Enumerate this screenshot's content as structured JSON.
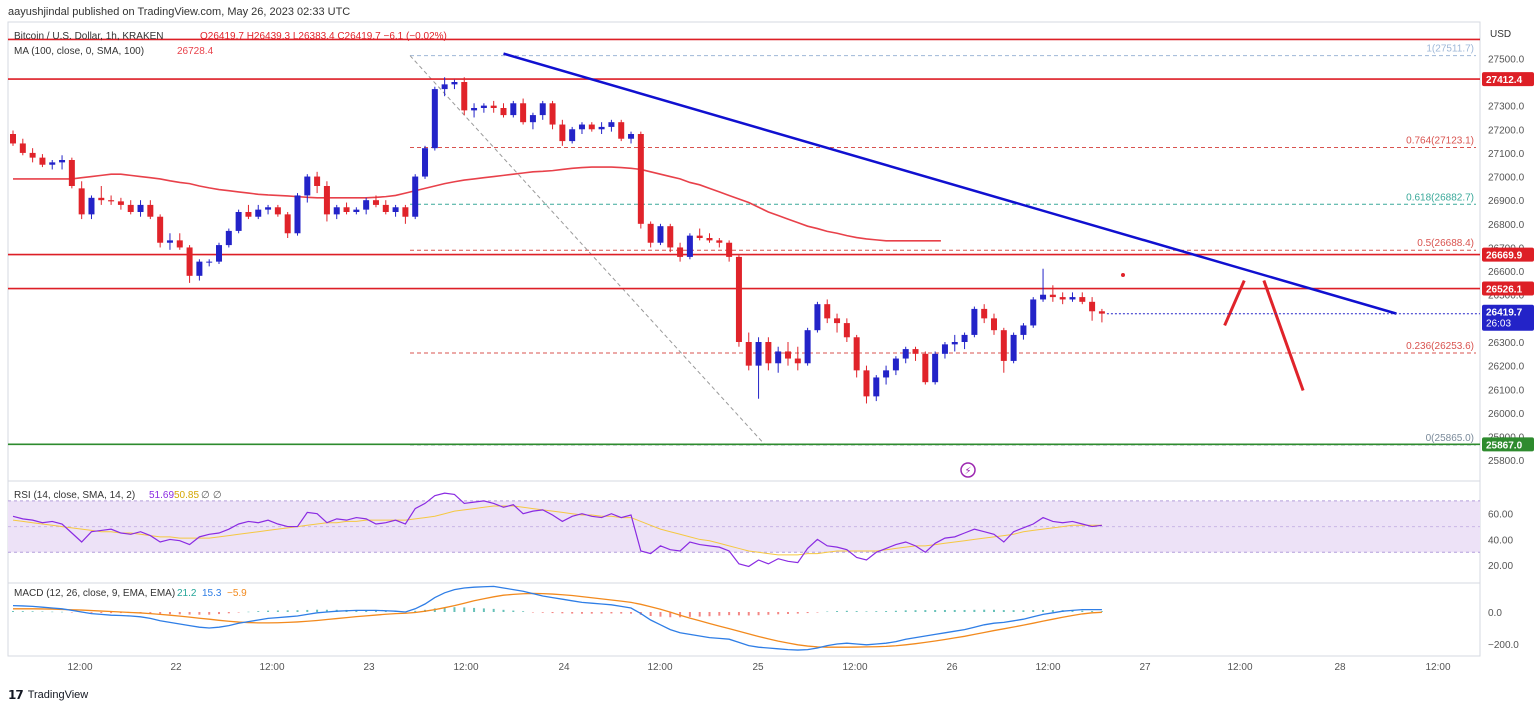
{
  "header": {
    "published": "aayushjindal published on TradingView.com, May 26, 2023 02:33 UTC"
  },
  "footer": {
    "brand": "TradingView",
    "logo_glyph": "𝟭𝟳"
  },
  "colors": {
    "up": "#2323c8",
    "down": "#e0232a",
    "ma": "#e8414a",
    "trend": "#1010d0",
    "resistance": "#dd1f26",
    "support": "#2e8b2e",
    "rsi": "#8a2be2",
    "rsi_ma": "#f5c842",
    "macd": "#2f7ee6",
    "signal": "#f28a1e"
  },
  "chart_data": {
    "type": "candlestick",
    "symbol_line": {
      "name": "Bitcoin / U.S. Dollar, 1h, KRAKEN",
      "ohlc": "O26419.7  H26439.3  L26383.4  C26419.7  −6.1 (−0.02%)"
    },
    "ma_legend": {
      "label": "MA (100, close, 0, SMA, 100)",
      "value": "26728.4"
    },
    "currency": "USD",
    "price_axis_ticks": [
      "27500.0",
      "27400.0",
      "27300.0",
      "27200.0",
      "27100.0",
      "27000.0",
      "26900.0",
      "26800.0",
      "26700.0",
      "26600.0",
      "26500.0",
      "26400.0",
      "26300.0",
      "26200.0",
      "26100.0",
      "26000.0",
      "25900.0",
      "25800.0"
    ],
    "time_axis_labels": [
      "12:00",
      "22",
      "12:00",
      "23",
      "12:00",
      "24",
      "12:00",
      "25",
      "12:00",
      "26",
      "12:00",
      "27",
      "12:00",
      "28",
      "12:00"
    ],
    "price_badges": [
      {
        "price": 27412.4,
        "label": "27412.4",
        "color": "#dd1f26"
      },
      {
        "price": 26669.9,
        "label": "26669.9",
        "color": "#dd1f26"
      },
      {
        "price": 26526.1,
        "label": "26526.1",
        "color": "#dd1f26"
      },
      {
        "price": 26419.7,
        "label": "26419.7",
        "sub": "26:03",
        "color": "#2323c8"
      },
      {
        "price": 25867.0,
        "label": "25867.0",
        "color": "#2e8b2e"
      }
    ],
    "horizontal_levels": [
      {
        "price": 27580.0,
        "color": "#dd1f26"
      },
      {
        "price": 27412.4,
        "color": "#dd1f26"
      },
      {
        "price": 26669.9,
        "color": "#dd1f26"
      },
      {
        "price": 26526.1,
        "color": "#dd1f26"
      },
      {
        "price": 25867.0,
        "color": "#2e8b2e"
      }
    ],
    "fibonacci": [
      {
        "price": 27511.7,
        "label": "1(27511.7)",
        "color": "#9fb8d8"
      },
      {
        "price": 27123.1,
        "label": "0.764(27123.1)",
        "color": "#d9534f"
      },
      {
        "price": 26882.7,
        "label": "0.618(26882.7)",
        "color": "#3aa99a"
      },
      {
        "price": 26688.4,
        "label": "0.5(26688.4)",
        "color": "#d9534f"
      },
      {
        "price": 26253.6,
        "label": "0.236(26253.6)",
        "color": "#d9534f"
      },
      {
        "price": 25865.0,
        "label": "0(25865.0)",
        "color": "#7a8a9a"
      }
    ],
    "trendline": {
      "from": {
        "bar": 50,
        "price": 27520
      },
      "to": {
        "bar": 140,
        "price": 26420
      }
    },
    "projection": [
      {
        "from": {
          "bar": 123,
          "price": 26370
        },
        "to": {
          "bar": 125,
          "price": 26560
        }
      },
      {
        "from": {
          "bar": 127,
          "price": 26560
        },
        "to": {
          "bar": 131,
          "price": 26095
        }
      }
    ],
    "candles": [
      [
        27180,
        27195,
        27130,
        27140
      ],
      [
        27140,
        27160,
        27090,
        27100
      ],
      [
        27100,
        27120,
        27060,
        27080
      ],
      [
        27080,
        27095,
        27040,
        27050
      ],
      [
        27050,
        27070,
        27030,
        27060
      ],
      [
        27060,
        27090,
        27030,
        27070
      ],
      [
        27070,
        27080,
        26950,
        26960
      ],
      [
        26950,
        26980,
        26820,
        26840
      ],
      [
        26840,
        26920,
        26820,
        26910
      ],
      [
        26910,
        26960,
        26880,
        26900
      ],
      [
        26900,
        26920,
        26880,
        26895
      ],
      [
        26895,
        26910,
        26860,
        26880
      ],
      [
        26880,
        26900,
        26840,
        26850
      ],
      [
        26850,
        26900,
        26830,
        26880
      ],
      [
        26880,
        26900,
        26820,
        26830
      ],
      [
        26830,
        26840,
        26700,
        26720
      ],
      [
        26720,
        26760,
        26690,
        26730
      ],
      [
        26730,
        26760,
        26690,
        26700
      ],
      [
        26700,
        26710,
        26550,
        26580
      ],
      [
        26580,
        26650,
        26560,
        26640
      ],
      [
        26640,
        26650,
        26620,
        26640
      ],
      [
        26640,
        26720,
        26630,
        26710
      ],
      [
        26710,
        26780,
        26700,
        26770
      ],
      [
        26770,
        26860,
        26760,
        26850
      ],
      [
        26850,
        26880,
        26820,
        26830
      ],
      [
        26830,
        26880,
        26820,
        26860
      ],
      [
        26860,
        26880,
        26840,
        26870
      ],
      [
        26870,
        26880,
        26830,
        26840
      ],
      [
        26840,
        26850,
        26740,
        26760
      ],
      [
        26760,
        26930,
        26750,
        26920
      ],
      [
        26920,
        27010,
        26890,
        27000
      ],
      [
        27000,
        27020,
        26930,
        26960
      ],
      [
        26960,
        26980,
        26810,
        26840
      ],
      [
        26840,
        26880,
        26820,
        26870
      ],
      [
        26870,
        26890,
        26840,
        26850
      ],
      [
        26850,
        26870,
        26840,
        26860
      ],
      [
        26860,
        26910,
        26840,
        26900
      ],
      [
        26900,
        26920,
        26870,
        26880
      ],
      [
        26880,
        26900,
        26840,
        26850
      ],
      [
        26850,
        26880,
        26830,
        26870
      ],
      [
        26870,
        26880,
        26800,
        26830
      ],
      [
        26830,
        27010,
        26820,
        27000
      ],
      [
        27000,
        27130,
        26990,
        27120
      ],
      [
        27120,
        27380,
        27110,
        27370
      ],
      [
        27370,
        27420,
        27340,
        27390
      ],
      [
        27390,
        27410,
        27370,
        27400
      ],
      [
        27400,
        27420,
        27260,
        27280
      ],
      [
        27280,
        27310,
        27250,
        27290
      ],
      [
        27290,
        27310,
        27270,
        27300
      ],
      [
        27300,
        27320,
        27270,
        27290
      ],
      [
        27290,
        27310,
        27250,
        27260
      ],
      [
        27260,
        27320,
        27250,
        27310
      ],
      [
        27310,
        27330,
        27220,
        27230
      ],
      [
        27230,
        27270,
        27200,
        27260
      ],
      [
        27260,
        27320,
        27240,
        27310
      ],
      [
        27310,
        27320,
        27200,
        27220
      ],
      [
        27220,
        27240,
        27130,
        27150
      ],
      [
        27150,
        27210,
        27140,
        27200
      ],
      [
        27200,
        27230,
        27180,
        27220
      ],
      [
        27220,
        27230,
        27190,
        27200
      ],
      [
        27200,
        27230,
        27180,
        27210
      ],
      [
        27210,
        27240,
        27190,
        27230
      ],
      [
        27230,
        27240,
        27150,
        27160
      ],
      [
        27160,
        27190,
        27140,
        27180
      ],
      [
        27180,
        27190,
        26780,
        26800
      ],
      [
        26800,
        26810,
        26700,
        26720
      ],
      [
        26720,
        26800,
        26710,
        26790
      ],
      [
        26790,
        26800,
        26680,
        26700
      ],
      [
        26700,
        26720,
        26640,
        26660
      ],
      [
        26660,
        26760,
        26650,
        26750
      ],
      [
        26750,
        26780,
        26730,
        26740
      ],
      [
        26740,
        26760,
        26720,
        26730
      ],
      [
        26730,
        26740,
        26700,
        26720
      ],
      [
        26720,
        26730,
        26640,
        26660
      ],
      [
        26660,
        26670,
        26280,
        26300
      ],
      [
        26300,
        26340,
        26180,
        26200
      ],
      [
        26200,
        26320,
        26060,
        26300
      ],
      [
        26300,
        26320,
        26180,
        26210
      ],
      [
        26210,
        26280,
        26170,
        26260
      ],
      [
        26260,
        26300,
        26200,
        26230
      ],
      [
        26230,
        26280,
        26180,
        26210
      ],
      [
        26210,
        26360,
        26200,
        26350
      ],
      [
        26350,
        26470,
        26340,
        26460
      ],
      [
        26460,
        26480,
        26380,
        26400
      ],
      [
        26400,
        26420,
        26340,
        26380
      ],
      [
        26380,
        26400,
        26300,
        26320
      ],
      [
        26320,
        26330,
        26150,
        26180
      ],
      [
        26180,
        26200,
        26040,
        26070
      ],
      [
        26070,
        26160,
        26050,
        26150
      ],
      [
        26150,
        26200,
        26120,
        26180
      ],
      [
        26180,
        26240,
        26160,
        26230
      ],
      [
        26230,
        26280,
        26210,
        26270
      ],
      [
        26270,
        26280,
        26220,
        26250
      ],
      [
        26250,
        26260,
        26120,
        26130
      ],
      [
        26130,
        26260,
        26120,
        26250
      ],
      [
        26250,
        26300,
        26230,
        26290
      ],
      [
        26290,
        26330,
        26260,
        26300
      ],
      [
        26300,
        26340,
        26270,
        26330
      ],
      [
        26330,
        26450,
        26320,
        26440
      ],
      [
        26440,
        26460,
        26380,
        26400
      ],
      [
        26400,
        26420,
        26330,
        26350
      ],
      [
        26350,
        26360,
        26170,
        26220
      ],
      [
        26220,
        26340,
        26210,
        26330
      ],
      [
        26330,
        26380,
        26310,
        26370
      ],
      [
        26370,
        26490,
        26360,
        26480
      ],
      [
        26480,
        26610,
        26470,
        26500
      ],
      [
        26500,
        26540,
        26470,
        26490
      ],
      [
        26490,
        26510,
        26460,
        26480
      ],
      [
        26480,
        26510,
        26470,
        26490
      ],
      [
        26490,
        26510,
        26460,
        26470
      ],
      [
        26470,
        26490,
        26390,
        26430
      ],
      [
        26430,
        26440,
        26383,
        26420
      ]
    ],
    "ma": [
      26990,
      26990,
      26990,
      26990,
      26990,
      26990,
      26990,
      26995,
      27000,
      27005,
      27010,
      27010,
      27005,
      27000,
      26995,
      26990,
      26982,
      26975,
      26970,
      26960,
      26952,
      26945,
      26940,
      26935,
      26930,
      26925,
      26922,
      26920,
      26918,
      26915,
      26912,
      26910,
      26910,
      26910,
      26910,
      26910,
      26910,
      26912,
      26915,
      26920,
      26930,
      26940,
      26950,
      26960,
      26970,
      26978,
      26985,
      26990,
      26995,
      27000,
      27005,
      27010,
      27015,
      27020,
      27022,
      27025,
      27030,
      27035,
      27038,
      27040,
      27040,
      27040,
      27038,
      27035,
      27030,
      27020,
      27010,
      27000,
      26990,
      26975,
      26965,
      26950,
      26935,
      26920,
      26905,
      26890,
      26870,
      26850,
      26835,
      26820,
      26805,
      26790,
      26780,
      26768,
      26760,
      26750,
      26742,
      26736,
      26732,
      26728
    ],
    "rsi": {
      "legend": "RSI (14, close, SMA, 14, 2)",
      "value": "51.69",
      "ma_value": "50.85",
      "extra": "∅  ∅",
      "ticks": [
        "60.00",
        "40.00",
        "20.00"
      ],
      "band": [
        30,
        70
      ],
      "values": [
        58,
        56,
        55,
        53,
        54,
        52,
        45,
        38,
        46,
        47,
        48,
        45,
        44,
        46,
        43,
        38,
        40,
        39,
        36,
        42,
        44,
        45,
        48,
        52,
        54,
        53,
        55,
        52,
        50,
        50,
        61,
        60,
        53,
        56,
        55,
        57,
        56,
        52,
        53,
        55,
        52,
        64,
        68,
        74,
        76,
        75,
        68,
        69,
        70,
        68,
        65,
        67,
        60,
        62,
        63,
        59,
        54,
        58,
        60,
        58,
        57,
        60,
        57,
        59,
        31,
        29,
        35,
        32,
        31,
        38,
        36,
        35,
        34,
        31,
        21,
        19,
        24,
        21,
        25,
        23,
        22,
        33,
        40,
        35,
        34,
        32,
        26,
        24,
        30,
        33,
        36,
        38,
        35,
        30,
        37,
        41,
        42,
        45,
        48,
        46,
        44,
        38,
        46,
        49,
        52,
        57,
        54,
        53,
        54,
        52,
        50,
        51
      ],
      "ma_values": [
        55,
        54,
        53,
        52,
        51,
        50,
        49,
        48,
        47,
        46,
        46,
        45,
        45,
        44,
        43,
        42,
        42,
        41,
        41,
        41,
        41,
        42,
        43,
        44,
        45,
        46,
        47,
        48,
        49,
        50,
        51,
        52,
        53,
        53,
        54,
        54,
        55,
        55,
        55,
        55,
        55,
        56,
        57,
        58,
        60,
        62,
        63,
        64,
        65,
        66,
        66,
        66,
        65,
        64,
        63,
        62,
        61,
        60,
        59,
        59,
        58,
        58,
        57,
        57,
        54,
        51,
        48,
        46,
        44,
        42,
        40,
        39,
        37,
        35,
        33,
        31,
        30,
        29,
        28,
        28,
        28,
        29,
        29,
        30,
        31,
        31,
        31,
        31,
        31,
        32,
        33,
        34,
        35,
        35,
        36,
        37,
        38,
        39,
        40,
        41,
        42,
        43,
        44,
        46,
        47,
        48,
        49,
        50,
        51,
        51,
        51,
        51
      ]
    },
    "macd": {
      "legend": "MACD (12, 26, close, 9, EMA, EMA)",
      "hist_value": "21.2",
      "macd_value": "15.3",
      "signal_value": "−5.9",
      "ticks": [
        "0.0",
        "−200.0"
      ],
      "range": [
        -250,
        150
      ],
      "macd": [
        40,
        38,
        35,
        30,
        25,
        20,
        10,
        0,
        -10,
        -15,
        -20,
        -22,
        -25,
        -30,
        -40,
        -55,
        -65,
        -75,
        -85,
        -95,
        -100,
        -95,
        -85,
        -70,
        -60,
        -50,
        -40,
        -35,
        -30,
        -25,
        -15,
        -5,
        0,
        5,
        8,
        10,
        10,
        10,
        8,
        5,
        0,
        20,
        50,
        90,
        120,
        140,
        150,
        155,
        158,
        160,
        150,
        140,
        130,
        115,
        100,
        90,
        80,
        70,
        60,
        55,
        50,
        45,
        35,
        25,
        -10,
        -50,
        -80,
        -110,
        -130,
        -140,
        -150,
        -160,
        -165,
        -170,
        -190,
        -210,
        -220,
        -225,
        -230,
        -235,
        -238,
        -235,
        -225,
        -210,
        -200,
        -195,
        -200,
        -205,
        -200,
        -195,
        -185,
        -170,
        -160,
        -150,
        -140,
        -130,
        -120,
        -110,
        -95,
        -80,
        -70,
        -65,
        -55,
        -45,
        -30,
        -15,
        -5,
        5,
        10,
        15,
        15,
        15
      ],
      "signal": [
        20,
        20,
        20,
        19,
        18,
        16,
        14,
        12,
        9,
        6,
        3,
        0,
        -3,
        -6,
        -10,
        -15,
        -20,
        -26,
        -32,
        -39,
        -45,
        -52,
        -58,
        -63,
        -66,
        -68,
        -68,
        -67,
        -65,
        -62,
        -58,
        -53,
        -47,
        -41,
        -35,
        -29,
        -24,
        -19,
        -14,
        -10,
        -8,
        -3,
        5,
        15,
        27,
        40,
        55,
        70,
        83,
        95,
        105,
        110,
        114,
        116,
        115,
        112,
        108,
        103,
        96,
        89,
        82,
        75,
        68,
        60,
        48,
        33,
        17,
        -1,
        -20,
        -38,
        -55,
        -72,
        -88,
        -104,
        -120,
        -137,
        -153,
        -168,
        -182,
        -194,
        -205,
        -213,
        -218,
        -220,
        -220,
        -220,
        -219,
        -218,
        -217,
        -215,
        -211,
        -205,
        -198,
        -190,
        -181,
        -172,
        -162,
        -152,
        -140,
        -128,
        -116,
        -105,
        -94,
        -82,
        -70,
        -57,
        -45,
        -33,
        -22,
        -12,
        -5,
        -2
      ]
    }
  }
}
